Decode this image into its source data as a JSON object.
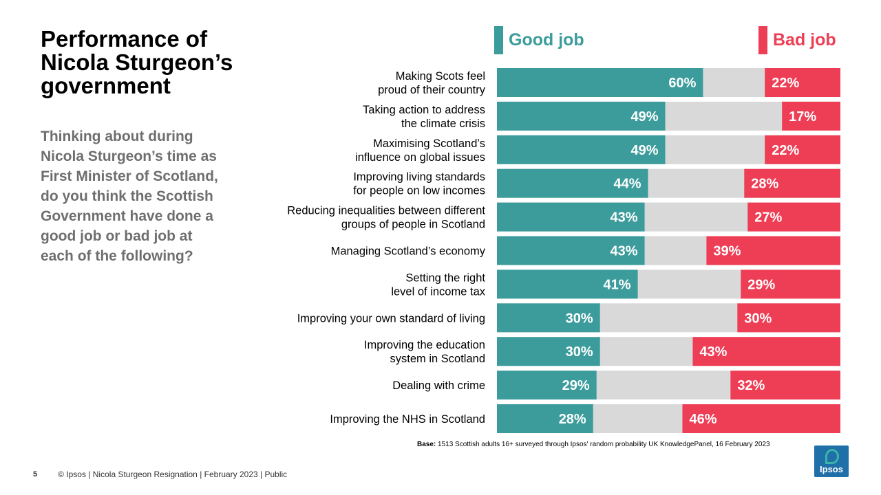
{
  "title": "Performance of\nNicola Sturgeon’s\ngovernment",
  "question": "Thinking about during\nNicola Sturgeon’s time as\nFirst Minister of Scotland,\ndo you think the Scottish\nGovernment have done a\ngood job or bad job at\neach of the following?",
  "colors": {
    "good": "#3c9c9c",
    "neutral": "#d9d9d9",
    "bad": "#ee3e55",
    "question": "#6e6e6e"
  },
  "chart_data": {
    "type": "bar",
    "orientation": "horizontal-stacked",
    "xlim": [
      0,
      100
    ],
    "series": [
      {
        "name": "Good job",
        "values": [
          60,
          49,
          49,
          44,
          43,
          43,
          41,
          30,
          30,
          29,
          28
        ]
      },
      {
        "name": "Bad job",
        "values": [
          22,
          17,
          22,
          28,
          27,
          39,
          29,
          30,
          43,
          32,
          46
        ]
      }
    ],
    "categories": [
      [
        "Making Scots feel",
        "proud of their country"
      ],
      [
        "Taking action to address",
        "the climate crisis"
      ],
      [
        "Maximising Scotland’s",
        "influence on global issues"
      ],
      [
        "Improving living standards",
        "for people on low incomes"
      ],
      [
        "Reducing inequalities between different",
        "groups of people in Scotland"
      ],
      [
        "Managing Scotland’s economy"
      ],
      [
        "Setting the right",
        "level of income tax"
      ],
      [
        "Improving your own standard of living"
      ],
      [
        "Improving the education",
        "system in Scotland"
      ],
      [
        "Dealing with crime"
      ],
      [
        "Improving the NHS in Scotland"
      ]
    ],
    "value_labels": {
      "good": [
        "60%",
        "49%",
        "49%",
        "44%",
        "43%",
        "43%",
        "41%",
        "30%",
        "30%",
        "29%",
        "28%"
      ],
      "bad": [
        "22%",
        "17%",
        "22%",
        "28%",
        "27%",
        "39%",
        "29%",
        "30%",
        "43%",
        "32%",
        "46%"
      ]
    },
    "legend": {
      "good": "Good job",
      "bad": "Bad job"
    }
  },
  "base": {
    "label": "Base:",
    "text": "1513 Scottish adults 16+ surveyed through Ipsos' random probability UK KnowledgePanel, 16 February 2023"
  },
  "footer": {
    "page": "5",
    "text": "© Ipsos |  Nicola Sturgeon Resignation | February  2023 | Public"
  },
  "logo": {
    "text": "Ipsos"
  }
}
